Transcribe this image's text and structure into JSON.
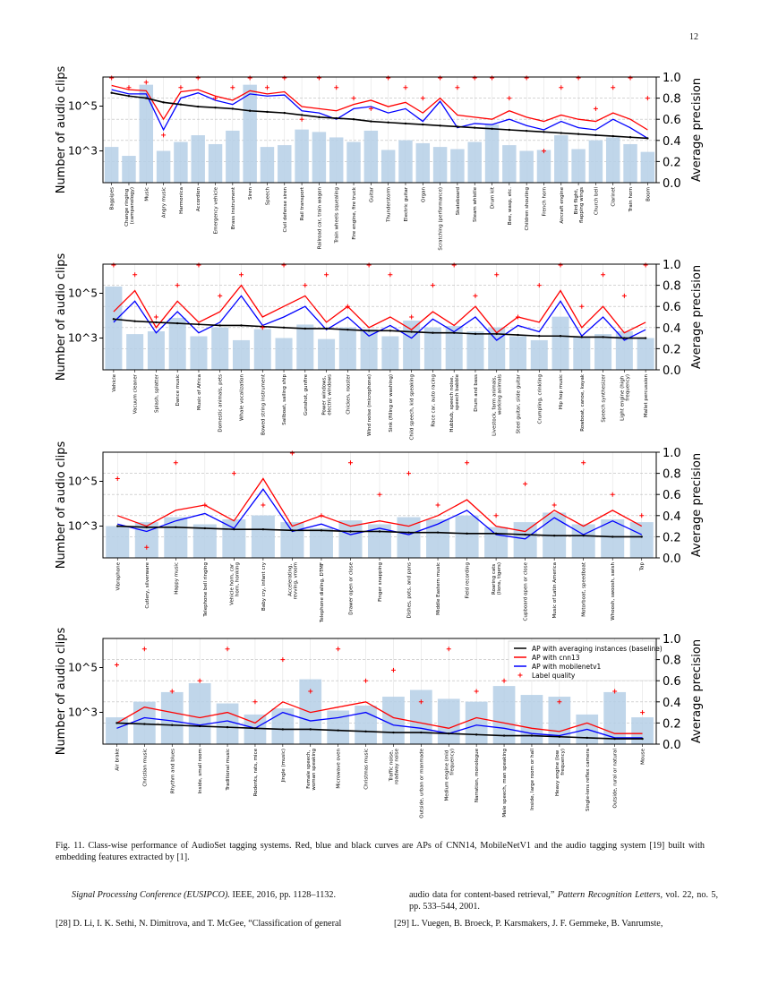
{
  "page_number": "12",
  "caption": "Fig. 11.  Class-wise performance of AudioSet tagging systems. Red, blue and black curves are APs of CNN14, MobileNetV1 and the audio tagging system [19] built with embedding features extracted by [1].",
  "references": {
    "left_cont_italic": "Signal Processing Conference (EUSIPCO).",
    "left_cont_rest": "  IEEE, 2016, pp. 1128–1132.",
    "left_28": "[28]  D. Li, I. K. Sethi, N. Dimitrova, and T. McGee, “Classification of general",
    "right_cont_a": "audio data for content-based retrieval,” ",
    "right_cont_italic": "Pattern Recognition Letters",
    "right_cont_b": ", vol. 22, no. 5, pp. 533–544, 2001.",
    "right_29": "[29]  L. Vuegen, B. Broeck, P. Karsmakers, J. F. Gemmeke, B. Vanrumste,"
  },
  "colors": {
    "cnn": "#ff0000",
    "mobilenet": "#0000ff",
    "baseline": "#000000",
    "bars": "#b5cfe6",
    "label_quality": "#ff0000"
  },
  "chart_data": [
    {
      "type": "bar+line",
      "ylabel_left": "Number of audio clips",
      "ylabel_right": "Average precision",
      "left_scale": "log",
      "left_ticks": [
        "10^5",
        "10^3"
      ],
      "right_ylim": [
        0,
        1
      ],
      "right_ticks": [
        "0.0",
        "0.2",
        "0.4",
        "0.6",
        "0.8",
        "1.0"
      ],
      "grid": true,
      "categories": [
        "Bagpipes",
        "Change ringing (campanology)",
        "Music",
        "Angry music",
        "Harmonica",
        "Accordion",
        "Emergency vehicle",
        "Brass instrument",
        "Siren",
        "Speech",
        "Civil defense siren",
        "Rail transport",
        "Railroad car, train wagon",
        "Train wheels squealing",
        "Fire engine, fire truck",
        "Guitar",
        "Thunderstorm",
        "Electric guitar",
        "Organ",
        "Scratching (performance)",
        "Skateboard",
        "Steam whistle",
        "Drum kit",
        "Bee, wasp, etc.",
        "Children shouting",
        "French horn",
        "Aircraft engine",
        "Bird flight, flapping wings",
        "Church bell",
        "Clarinet",
        "Train horn",
        "Boom"
      ],
      "counts": [
        1500,
        600,
        900000,
        1000,
        2500,
        5000,
        2000,
        8000,
        900000,
        1500,
        1800,
        9000,
        7000,
        4000,
        2500,
        8000,
        1100,
        3000,
        2200,
        1500,
        1200,
        2500,
        15000,
        1800,
        1000,
        1100,
        5000,
        1200,
        3000,
        4000,
        2000,
        900
      ],
      "series": [
        {
          "name": "AP with cnn13",
          "values": [
            0.92,
            0.88,
            0.87,
            0.6,
            0.86,
            0.88,
            0.82,
            0.78,
            0.87,
            0.84,
            0.86,
            0.72,
            0.7,
            0.68,
            0.74,
            0.78,
            0.72,
            0.76,
            0.66,
            0.8,
            0.64,
            0.62,
            0.6,
            0.68,
            0.62,
            0.58,
            0.64,
            0.6,
            0.58,
            0.66,
            0.6,
            0.5
          ]
        },
        {
          "name": "AP with mobilenetv1",
          "values": [
            0.88,
            0.84,
            0.84,
            0.5,
            0.8,
            0.85,
            0.78,
            0.74,
            0.84,
            0.82,
            0.83,
            0.68,
            0.66,
            0.6,
            0.7,
            0.72,
            0.66,
            0.7,
            0.58,
            0.77,
            0.52,
            0.56,
            0.55,
            0.6,
            0.54,
            0.5,
            0.58,
            0.52,
            0.5,
            0.6,
            0.52,
            0.42
          ]
        },
        {
          "name": "AP with averaging instances (baseline)",
          "values": [
            0.85,
            0.82,
            0.8,
            0.76,
            0.74,
            0.72,
            0.71,
            0.7,
            0.68,
            0.67,
            0.66,
            0.64,
            0.62,
            0.61,
            0.6,
            0.58,
            0.57,
            0.56,
            0.55,
            0.54,
            0.53,
            0.52,
            0.51,
            0.5,
            0.49,
            0.48,
            0.47,
            0.46,
            0.45,
            0.44,
            0.43,
            0.42
          ]
        }
      ],
      "label_quality": [
        1.0,
        0.9,
        0.95,
        0.45,
        0.9,
        1.0,
        0.8,
        0.9,
        1.0,
        0.9,
        1.0,
        0.6,
        1.0,
        0.9,
        0.8,
        0.7,
        1.0,
        0.9,
        0.8,
        1.0,
        0.9,
        1.0,
        1.0,
        0.8,
        1.0,
        0.3,
        0.9,
        1.0,
        0.7,
        0.9,
        1.0,
        0.8
      ]
    },
    {
      "type": "bar+line",
      "ylabel_left": "Number of audio clips",
      "ylabel_right": "Average precision",
      "left_scale": "log",
      "left_ticks": [
        "10^5",
        "10^3"
      ],
      "right_ylim": [
        0,
        1
      ],
      "right_ticks": [
        "0.0",
        "0.2",
        "0.4",
        "0.6",
        "0.8",
        "1.0"
      ],
      "grid": true,
      "categories": [
        "Vehicle",
        "Vacuum cleaner",
        "Splash, splatter",
        "Dance music",
        "Music of Africa",
        "Domestic animals, pets",
        "Whale vocalization",
        "Bowed string instrument",
        "Sailboat, sailing ship",
        "Gunshot, gunfire",
        "Power windows, electric windows",
        "Chicken, rooster",
        "Wind noise (microphone)",
        "Sink (filling or washing)",
        "Child speech, kid speaking",
        "Race car, auto racing",
        "Hubbub, speech noise, speech babble",
        "Drum and bass",
        "Livestock, farm animals, working animals",
        "Steel guitar, slide guitar",
        "Crumpling, crinkling",
        "Hip hop music",
        "Rowboat, canoe, kayak",
        "Speech synthesizer",
        "Light engine (high frequency)",
        "Mallet percussion"
      ],
      "counts": [
        200000,
        1500,
        2000,
        8000,
        1200,
        3000,
        800,
        2500,
        1000,
        4000,
        900,
        3000,
        2500,
        1200,
        6000,
        3000,
        3500,
        2000,
        3000,
        1200,
        800,
        9000,
        1100,
        1500,
        2000,
        1000
      ],
      "series": [
        {
          "name": "AP with cnn13",
          "values": [
            0.55,
            0.75,
            0.4,
            0.65,
            0.45,
            0.55,
            0.8,
            0.5,
            0.6,
            0.7,
            0.45,
            0.6,
            0.4,
            0.5,
            0.38,
            0.55,
            0.42,
            0.6,
            0.35,
            0.5,
            0.45,
            0.75,
            0.4,
            0.6,
            0.35,
            0.45
          ]
        },
        {
          "name": "AP with mobilenetv1",
          "values": [
            0.45,
            0.65,
            0.35,
            0.55,
            0.35,
            0.45,
            0.7,
            0.42,
            0.5,
            0.6,
            0.38,
            0.5,
            0.32,
            0.42,
            0.3,
            0.48,
            0.36,
            0.5,
            0.28,
            0.42,
            0.36,
            0.65,
            0.32,
            0.5,
            0.28,
            0.38
          ]
        },
        {
          "name": "AP with averaging instances (baseline)",
          "values": [
            0.48,
            0.46,
            0.45,
            0.44,
            0.43,
            0.42,
            0.42,
            0.41,
            0.4,
            0.39,
            0.39,
            0.38,
            0.37,
            0.37,
            0.36,
            0.35,
            0.35,
            0.34,
            0.34,
            0.33,
            0.32,
            0.32,
            0.31,
            0.31,
            0.3,
            0.3
          ]
        }
      ],
      "label_quality": [
        1.0,
        0.9,
        0.5,
        0.8,
        1.0,
        0.7,
        0.9,
        0.4,
        1.0,
        0.8,
        0.9,
        0.6,
        1.0,
        0.9,
        0.5,
        0.8,
        1.0,
        0.7,
        0.9,
        0.5,
        0.8,
        1.0,
        0.6,
        0.9,
        0.7,
        1.0
      ]
    },
    {
      "type": "bar+line",
      "ylabel_left": "Number of audio clips",
      "ylabel_right": "Average precision",
      "left_scale": "log",
      "left_ticks": [
        "10^5",
        "10^3"
      ],
      "right_ylim": [
        0,
        1
      ],
      "right_ticks": [
        "0.0",
        "0.2",
        "0.4",
        "0.6",
        "0.8",
        "1.0"
      ],
      "grid": true,
      "categories": [
        "Vibraphone",
        "Cutlery, silverware",
        "Happy music",
        "Telephone bell ringing",
        "Vehicle horn, car horn, honking",
        "Baby cry, infant cry",
        "Accelerating, revving, vroom",
        "Telephone dialing, DTMF",
        "Drawer open or close",
        "Finger snapping",
        "Dishes, pots, and pans",
        "Middle Eastern music",
        "Field recording",
        "Roaring cats (lions, tigers)",
        "Cupboard open or close",
        "Music of Latin America",
        "Motorboat, speedboat",
        "Whoosh, swoosh, swish",
        "Tap"
      ],
      "counts": [
        1000,
        1500,
        2500,
        1200,
        2000,
        3000,
        1500,
        800,
        1800,
        1200,
        2500,
        2000,
        3000,
        900,
        1500,
        4000,
        1200,
        2000,
        1500
      ],
      "series": [
        {
          "name": "AP with cnn13",
          "values": [
            0.4,
            0.3,
            0.45,
            0.5,
            0.35,
            0.75,
            0.3,
            0.4,
            0.3,
            0.35,
            0.3,
            0.4,
            0.55,
            0.3,
            0.25,
            0.45,
            0.3,
            0.45,
            0.3
          ]
        },
        {
          "name": "AP with mobilenetv1",
          "values": [
            0.32,
            0.25,
            0.35,
            0.42,
            0.28,
            0.65,
            0.25,
            0.32,
            0.22,
            0.28,
            0.22,
            0.32,
            0.45,
            0.22,
            0.18,
            0.38,
            0.22,
            0.35,
            0.22
          ]
        },
        {
          "name": "AP with averaging instances (baseline)",
          "values": [
            0.3,
            0.29,
            0.29,
            0.28,
            0.27,
            0.27,
            0.26,
            0.26,
            0.25,
            0.25,
            0.24,
            0.24,
            0.23,
            0.23,
            0.22,
            0.21,
            0.21,
            0.2,
            0.2
          ]
        }
      ],
      "label_quality": [
        0.75,
        0.1,
        0.9,
        0.5,
        0.8,
        0.5,
        1.0,
        0.4,
        0.9,
        0.6,
        0.8,
        0.5,
        0.9,
        0.4,
        0.7,
        0.5,
        0.9,
        0.6,
        0.4
      ]
    },
    {
      "type": "bar+line",
      "ylabel_left": "Number of audio clips",
      "ylabel_right": "Average precision",
      "left_scale": "log",
      "left_ticks": [
        "10^5",
        "10^3"
      ],
      "right_ylim": [
        0,
        1
      ],
      "right_ticks": [
        "0.0",
        "0.2",
        "0.4",
        "0.6",
        "0.8",
        "1.0"
      ],
      "grid": true,
      "legend": "top-right",
      "categories": [
        "Air brake",
        "Christian music",
        "Rhythm and blues",
        "Inside, small room",
        "Traditional music",
        "Rodents, rats, mice",
        "Jingle (music)",
        "Female speech, woman speaking",
        "Microwave oven",
        "Christmas music",
        "Traffic noise, roadway noise",
        "Outside, urban or manmade",
        "Medium engine (mid frequency)",
        "Narration, monologue",
        "Male speech, man speaking",
        "Inside, large room or hall",
        "Heavy engine (low frequency)",
        "Single-lens reflex camera",
        "Outside, rural or natural",
        "Mouse"
      ],
      "counts": [
        600,
        3000,
        8000,
        20000,
        2500,
        800,
        1500,
        30000,
        1200,
        2000,
        5000,
        10000,
        4000,
        3000,
        15000,
        6000,
        5000,
        800,
        8000,
        600
      ],
      "series": [
        {
          "name": "AP with cnn13",
          "values": [
            0.2,
            0.35,
            0.3,
            0.25,
            0.3,
            0.2,
            0.4,
            0.3,
            0.35,
            0.4,
            0.25,
            0.2,
            0.15,
            0.25,
            0.2,
            0.15,
            0.12,
            0.2,
            0.1,
            0.1
          ]
        },
        {
          "name": "AP with mobilenetv1",
          "values": [
            0.15,
            0.25,
            0.22,
            0.18,
            0.22,
            0.15,
            0.3,
            0.22,
            0.25,
            0.3,
            0.18,
            0.15,
            0.1,
            0.18,
            0.15,
            0.1,
            0.08,
            0.14,
            0.06,
            0.06
          ]
        },
        {
          "name": "AP with averaging instances (baseline)",
          "values": [
            0.2,
            0.19,
            0.18,
            0.17,
            0.16,
            0.15,
            0.14,
            0.14,
            0.13,
            0.12,
            0.11,
            0.11,
            0.1,
            0.09,
            0.08,
            0.08,
            0.07,
            0.06,
            0.05,
            0.05
          ]
        }
      ],
      "label_quality": [
        0.75,
        0.9,
        0.5,
        0.6,
        0.9,
        0.4,
        0.8,
        0.5,
        0.9,
        0.6,
        0.7,
        0.4,
        0.9,
        0.5,
        0.6,
        0.8,
        0.4,
        0.9,
        0.5,
        0.3
      ]
    }
  ]
}
